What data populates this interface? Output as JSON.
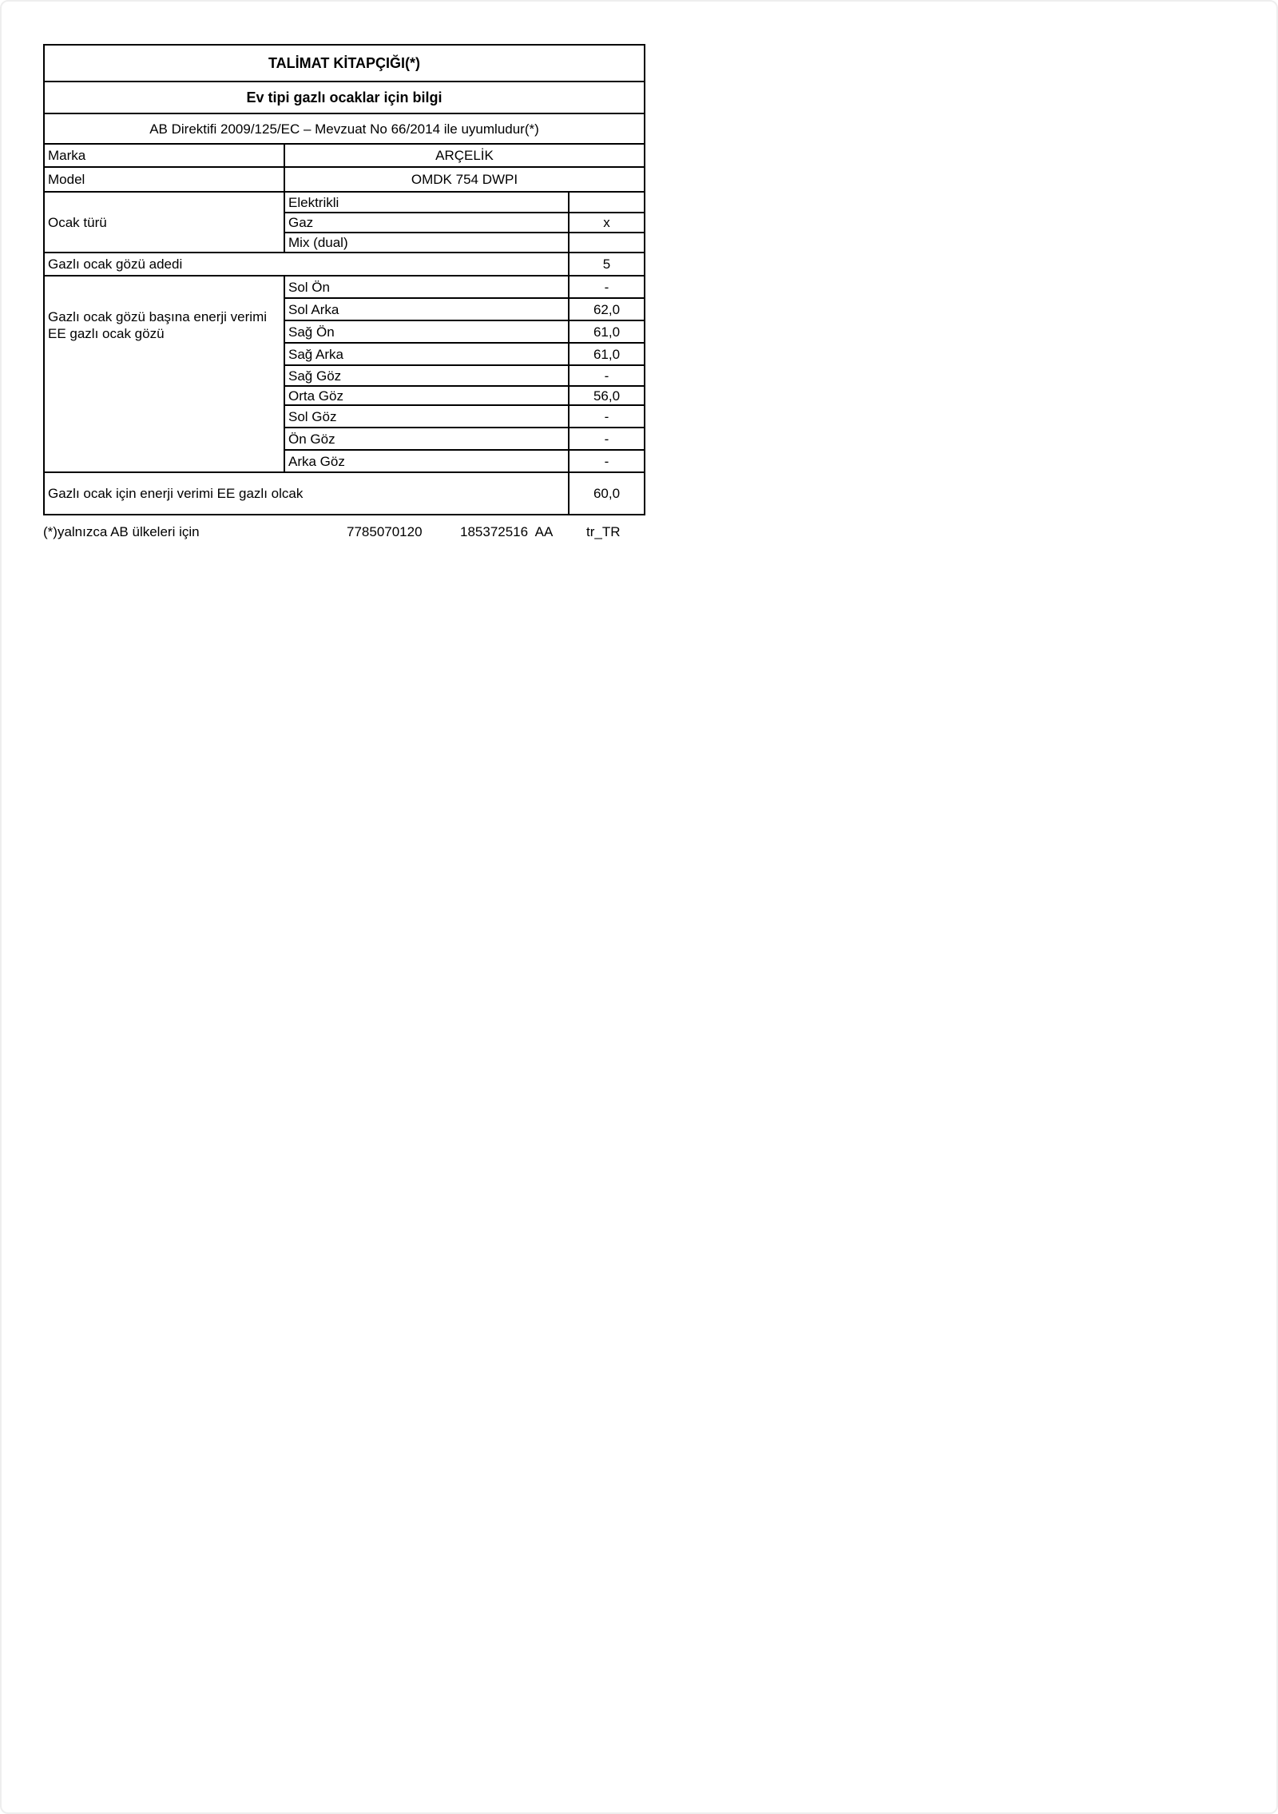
{
  "title": "TALİMAT KİTAPÇIĞI(*)",
  "subtitle": "Ev tipi  gazlı ocaklar için bilgi",
  "directive": "AB Direktifi 2009/125/EC – Mevzuat No 66/2014 ile uyumludur(*)",
  "brand": {
    "label": "Marka",
    "value": "ARÇELİK"
  },
  "model": {
    "label": "Model",
    "value": "OMDK 754 DWPI"
  },
  "hob_type": {
    "label": "Ocak türü",
    "options": [
      {
        "label": "Elektrikli",
        "value": ""
      },
      {
        "label": "Gaz",
        "value": "x"
      },
      {
        "label": "Mix (dual)",
        "value": ""
      }
    ]
  },
  "burner_count": {
    "label": "Gazlı ocak gözü adedi",
    "value": "5"
  },
  "burner_efficiency": {
    "label": "Gazlı ocak gözü başına enerji verimi EE gazlı ocak gözü",
    "rows": [
      {
        "label": "Sol Ön",
        "value": "-"
      },
      {
        "label": "Sol Arka",
        "value": "62,0"
      },
      {
        "label": "Sağ Ön",
        "value": "61,0"
      },
      {
        "label": "Sağ Arka",
        "value": "61,0"
      },
      {
        "label": "Sağ Göz",
        "value": "-"
      },
      {
        "label": "Orta Göz",
        "value": "56,0"
      },
      {
        "label": "Sol Göz",
        "value": "-"
      },
      {
        "label": "Ön Göz",
        "value": "-"
      },
      {
        "label": "Arka Göz",
        "value": "-"
      }
    ]
  },
  "total_efficiency": {
    "label": "Gazlı ocak için enerji verimi EE gazlı olcak",
    "value": "60,0"
  },
  "footer": {
    "note": "(*)yalnızca AB ülkeleri için",
    "code1": "7785070120",
    "code2": "185372516  AA",
    "locale": "tr_TR"
  }
}
